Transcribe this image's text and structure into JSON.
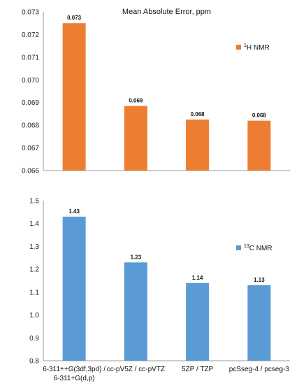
{
  "chart_data": [
    {
      "type": "bar",
      "title": "Mean Absolute Error, ppm",
      "legend": {
        "label_sup": "1",
        "label_text": "H NMR",
        "placement": "top-right"
      },
      "categories": [
        "6-311++G(3df,3pd) / 6-311+G(d,p)",
        "cc-pV5Z / cc-pVTZ",
        "5ZP / TZP",
        "pcSseg-4 / pcseg-3"
      ],
      "values": [
        0.0725,
        0.06885,
        0.06825,
        0.0682
      ],
      "data_labels": [
        "0.073",
        "0.069",
        "0.068",
        "0.068"
      ],
      "ylim": [
        0.066,
        0.073
      ],
      "yticks": [
        "0.066",
        "0.067",
        "0.068",
        "0.069",
        "0.070",
        "0.071",
        "0.072",
        "0.073"
      ],
      "grid": false,
      "color": "#ED7D31"
    },
    {
      "type": "bar",
      "legend": {
        "label_sup": "13",
        "label_text": "C NMR",
        "placement": "top-right"
      },
      "categories": [
        "6-311++G(3df,3pd) / 6-311+G(d,p)",
        "cc-pV5Z / cc-pVTZ",
        "5ZP / TZP",
        "pcSseg-4 / pcseg-3"
      ],
      "category_lines": [
        [
          "6-311++G(3df,3pd) /",
          "6-311+G(d,p)"
        ],
        [
          "cc-pV5Z / cc-pVTZ"
        ],
        [
          "5ZP / TZP"
        ],
        [
          "pcSseg-4 / pcseg-3"
        ]
      ],
      "values": [
        1.43,
        1.23,
        1.14,
        1.13
      ],
      "data_labels": [
        "1.43",
        "1.23",
        "1.14",
        "1.13"
      ],
      "ylim": [
        0.8,
        1.5
      ],
      "yticks": [
        "0.8",
        "0.9",
        "1.0",
        "1.1",
        "1.2",
        "1.3",
        "1.4",
        "1.5"
      ],
      "grid": false,
      "color": "#5B9BD5"
    }
  ]
}
